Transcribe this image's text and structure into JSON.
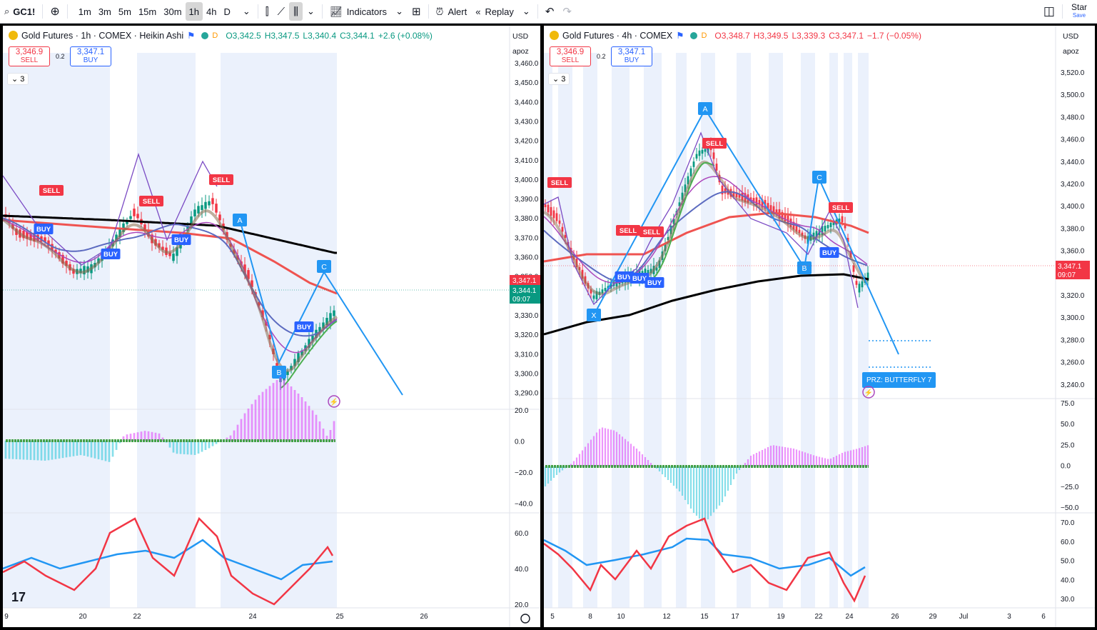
{
  "toolbar": {
    "symbol": "GC1!",
    "intervals": [
      "1m",
      "3m",
      "5m",
      "15m",
      "30m",
      "1h",
      "4h",
      "D"
    ],
    "active_interval": "1h",
    "indicators_label": "Indicators",
    "alert_label": "Alert",
    "replay_label": "Replay",
    "star_label": "Star",
    "save_label": "Save"
  },
  "left": {
    "title": "Gold Futures · 1h · COMEX · Heikin Ashi",
    "ohlc": {
      "o": "O3,342.5",
      "h": "H3,347.5",
      "l": "L3,340.4",
      "c": "C3,344.1",
      "chg": "+2.6 (+0.08%)"
    },
    "ohlc_color": "#089981",
    "sell_price": "3,346.9",
    "sell_label": "SELL",
    "spread": "0.2",
    "buy_price": "3,347.1",
    "buy_label": "BUY",
    "collapse_count": "3",
    "currency": "USD",
    "scale": "apoz",
    "price_axis": [
      "3,460.0",
      "3,450.0",
      "3,440.0",
      "3,430.0",
      "3,420.0",
      "3,410.0",
      "3,400.0",
      "3,390.0",
      "3,380.0",
      "3,370.0",
      "3,360.0",
      "3,350.0",
      "3,340.0",
      "3,330.0",
      "3,320.0",
      "3,310.0",
      "3,300.0",
      "3,290.0"
    ],
    "price_tag_red": "3,347.1",
    "price_tag_green": "3,344.1",
    "price_tag_time": "09:07",
    "macd_axis": [
      "20.0",
      "0.0",
      "−20.0",
      "−40.0"
    ],
    "rsi_axis": [
      "60.0",
      "40.0",
      "20.0"
    ],
    "time_axis": [
      "9",
      "20",
      "22",
      "24",
      "25",
      "26"
    ],
    "pattern_labels": [
      "A",
      "B",
      "C"
    ],
    "signals": [
      "SELL",
      "SELL",
      "SELL",
      "BUY",
      "BUY",
      "BUY",
      "BUY"
    ]
  },
  "right": {
    "title": "Gold Futures · 4h · COMEX",
    "ohlc": {
      "o": "O3,348.7",
      "h": "H3,349.5",
      "l": "L3,339.3",
      "c": "C3,347.1",
      "chg": "−1.7 (−0.05%)"
    },
    "ohlc_color": "#f23645",
    "sell_price": "3,346.9",
    "sell_label": "SELL",
    "spread": "0.2",
    "buy_price": "3,347.1",
    "buy_label": "BUY",
    "collapse_count": "3",
    "currency": "USD",
    "scale": "apoz",
    "price_axis": [
      "3,520.0",
      "3,500.0",
      "3,480.0",
      "3,460.0",
      "3,440.0",
      "3,420.0",
      "3,400.0",
      "3,380.0",
      "3,360.0",
      "3,340.0",
      "3,320.0",
      "3,300.0",
      "3,280.0",
      "3,260.0",
      "3,240.0"
    ],
    "price_tag": "3,347.1",
    "price_tag_time": "09:07",
    "macd_axis": [
      "75.0",
      "50.0",
      "25.0",
      "0.0",
      "−25.0",
      "−50.0"
    ],
    "rsi_axis": [
      "70.0",
      "60.0",
      "50.0",
      "40.0",
      "30.0"
    ],
    "time_axis": [
      "5",
      "8",
      "10",
      "12",
      "15",
      "17",
      "19",
      "22",
      "24",
      "26",
      "29",
      "Jul",
      "3",
      "6"
    ],
    "pattern_labels": [
      "X",
      "A",
      "B",
      "C"
    ],
    "prz_label": "PRZ: BUTTERFLY 7",
    "signals": [
      "SELL",
      "SELL",
      "SELL",
      "SELL",
      "SELL",
      "BUY",
      "BUY",
      "BUY",
      "BUY"
    ]
  },
  "colors": {
    "up": "#089981",
    "down": "#f23645",
    "accent": "#2962ff",
    "pattern": "#2196f3",
    "ema_black": "#000000",
    "ema_red": "#ef5350"
  }
}
